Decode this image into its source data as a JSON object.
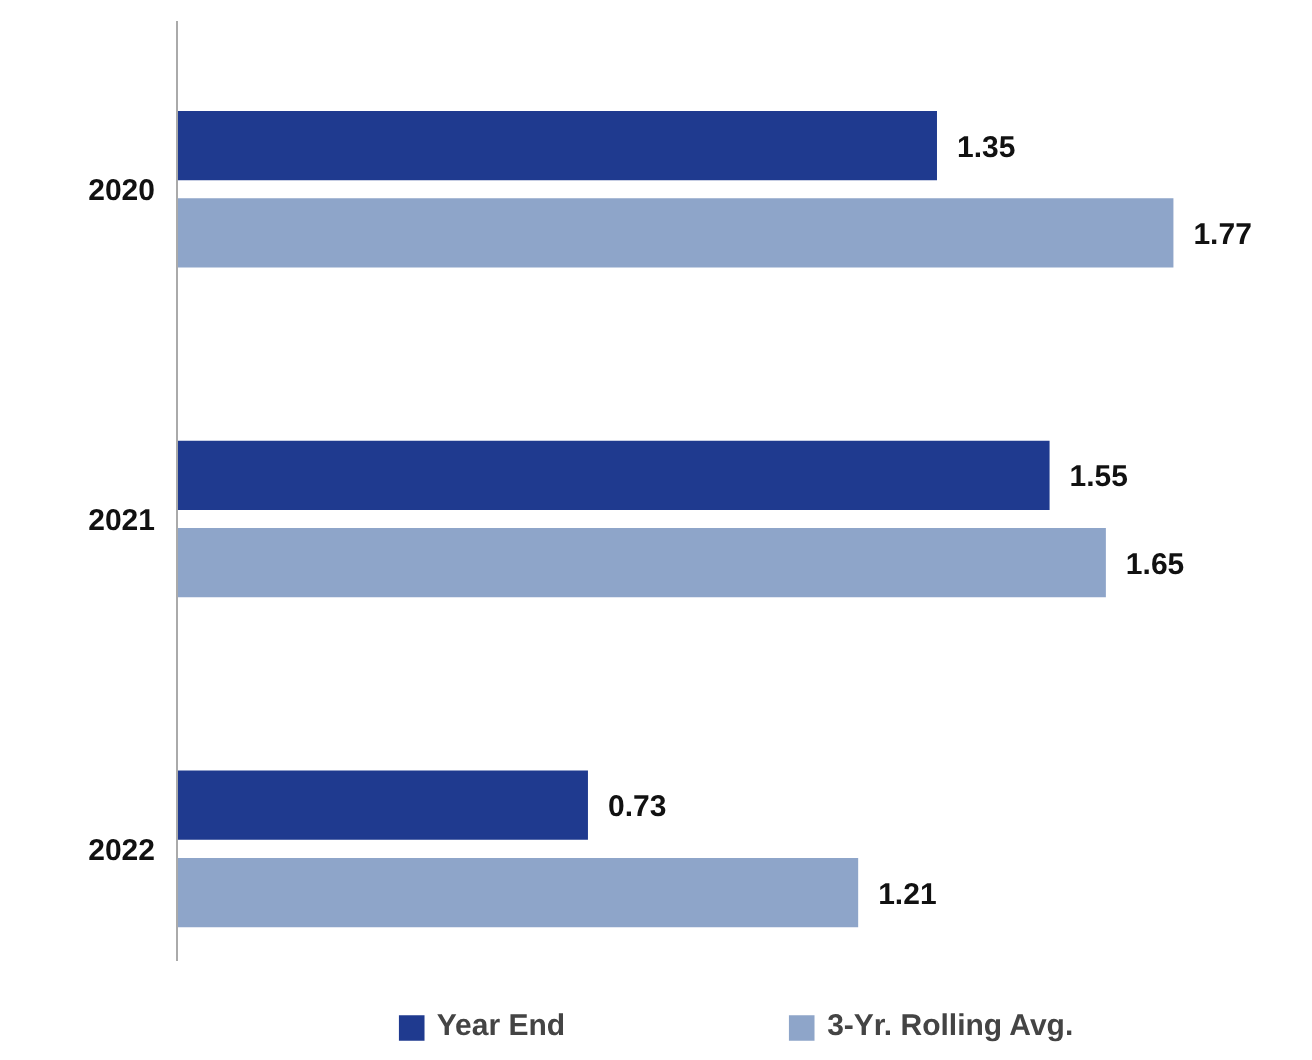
{
  "chart_data": {
    "type": "bar",
    "orientation": "horizontal",
    "categories": [
      "2020",
      "2021",
      "2022"
    ],
    "series": [
      {
        "name": "Year End",
        "color": "#1f3a8f",
        "values": [
          1.35,
          1.55,
          0.73
        ]
      },
      {
        "name": "3-Yr. Rolling Avg.",
        "color": "#8ea5c9",
        "values": [
          1.77,
          1.65,
          1.21
        ]
      }
    ],
    "data_labels": true,
    "legend": "bottom",
    "grid": false,
    "tick_labels": "y"
  }
}
